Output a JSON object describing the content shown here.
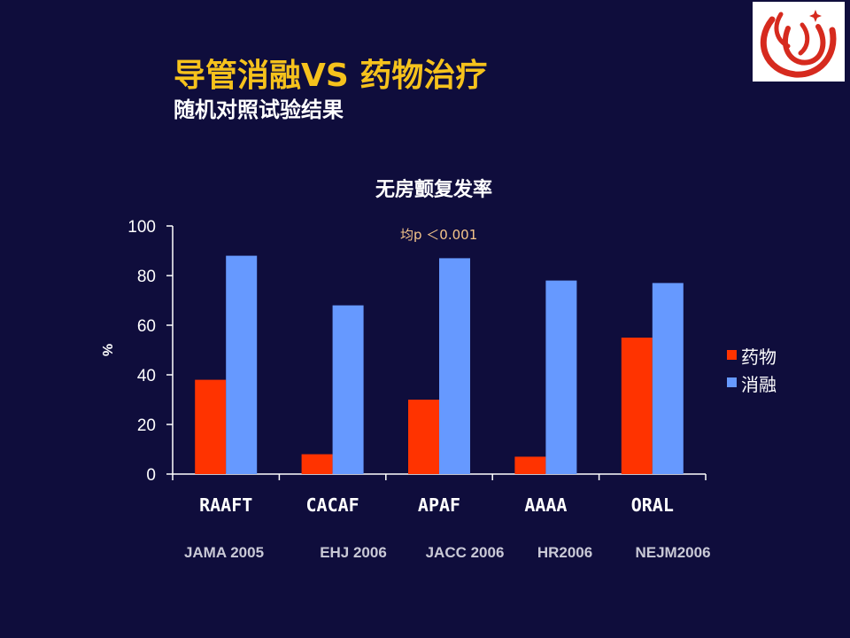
{
  "slide": {
    "title": "导管消融VS 药物治疗",
    "subtitle": "随机对照试验结果",
    "sources": [
      "JAMA 2005",
      "EHJ 2006",
      "JACC 2006",
      "HR2006",
      "NEJM2006"
    ]
  },
  "chart_data": {
    "type": "bar",
    "title": "无房颤复发率",
    "annotation": "均p ＜0.001",
    "ylabel": "%",
    "xlabel": "",
    "ylim": [
      0,
      100
    ],
    "yticks": [
      0,
      20,
      40,
      60,
      80,
      100
    ],
    "grid": false,
    "legend_position": "right",
    "categories": [
      "RAAFT",
      "CACAF",
      "APAF",
      "AAAA",
      "ORAL"
    ],
    "series": [
      {
        "name": "药物",
        "color": "#ff3300",
        "values": [
          38,
          8,
          30,
          7,
          55
        ]
      },
      {
        "name": "消融",
        "color": "#6699ff",
        "values": [
          88,
          68,
          87,
          78,
          77
        ]
      }
    ]
  },
  "colors": {
    "background": "#0f0d3c",
    "title": "#f6c21c",
    "annotation": "#f5c58a",
    "axis": "#ffffff"
  },
  "logo": {
    "icon": "red-swirl-logo-icon"
  }
}
